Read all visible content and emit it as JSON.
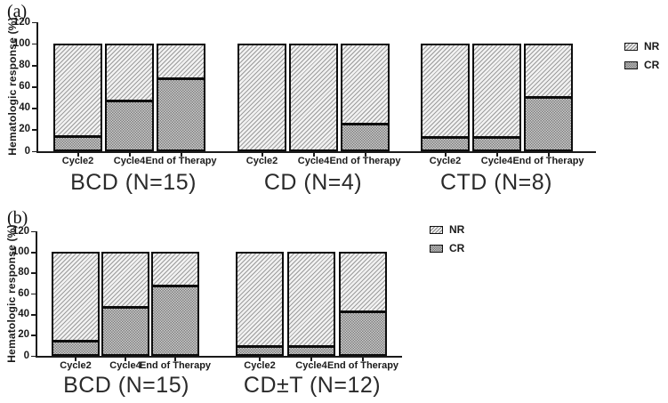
{
  "figure": {
    "background": "#ffffff",
    "colors": {
      "axis": "#1a1a1a",
      "bar_border": "#0d0d0d",
      "nr_hatch_line": "#9c9c9c",
      "nr_hatch_bg": "#f1f1f1",
      "cr_dot_dark": "#7e7e7e",
      "cr_dot_light": "#cdcdcd",
      "text": "#1a1a1a"
    }
  },
  "chart_data": [
    {
      "type": "bar",
      "stacked": true,
      "panel_label": "(a)",
      "title": "",
      "ylabel": "Hematologic response (%)",
      "xlabel": "",
      "ylim": [
        0,
        120
      ],
      "yticks": [
        0,
        20,
        40,
        60,
        80,
        100,
        120
      ],
      "grid": false,
      "categories": [
        "Cycle2",
        "Cycle4",
        "End of Therapy"
      ],
      "legend_position": "right-of-plot",
      "legend": [
        {
          "label": "NR",
          "pattern": "diagonal-hatch"
        },
        {
          "label": "CR",
          "pattern": "checker-dots"
        }
      ],
      "groups": [
        {
          "label": "BCD (N=15)",
          "series": [
            {
              "name": "CR",
              "values": [
                13.3,
                46.7,
                66.7
              ]
            },
            {
              "name": "NR",
              "values": [
                86.7,
                53.3,
                33.3
              ]
            }
          ]
        },
        {
          "label": "CD (N=4)",
          "series": [
            {
              "name": "CR",
              "values": [
                0,
                0,
                25
              ]
            },
            {
              "name": "NR",
              "values": [
                100,
                100,
                75
              ]
            }
          ]
        },
        {
          "label": "CTD (N=8)",
          "series": [
            {
              "name": "CR",
              "values": [
                12.5,
                12.5,
                50
              ]
            },
            {
              "name": "NR",
              "values": [
                87.5,
                87.5,
                50
              ]
            }
          ]
        }
      ]
    },
    {
      "type": "bar",
      "stacked": true,
      "panel_label": "(b)",
      "title": "",
      "ylabel": "Hematologic response (%)",
      "xlabel": "",
      "ylim": [
        0,
        120
      ],
      "yticks": [
        0,
        20,
        40,
        60,
        80,
        100,
        120
      ],
      "grid": false,
      "categories": [
        "Cycle2",
        "Cycle4",
        "End of Therapy"
      ],
      "legend_position": "right-of-plot",
      "legend": [
        {
          "label": "NR",
          "pattern": "diagonal-hatch"
        },
        {
          "label": "CR",
          "pattern": "checker-dots"
        }
      ],
      "groups": [
        {
          "label": "BCD (N=15)",
          "series": [
            {
              "name": "CR",
              "values": [
                13.3,
                46.7,
                66.7
              ]
            },
            {
              "name": "NR",
              "values": [
                86.7,
                53.3,
                33.3
              ]
            }
          ]
        },
        {
          "label": "CD±T (N=12)",
          "series": [
            {
              "name": "CR",
              "values": [
                8.3,
                8.3,
                41.7
              ]
            },
            {
              "name": "NR",
              "values": [
                91.7,
                91.7,
                58.3
              ]
            }
          ]
        }
      ]
    }
  ]
}
